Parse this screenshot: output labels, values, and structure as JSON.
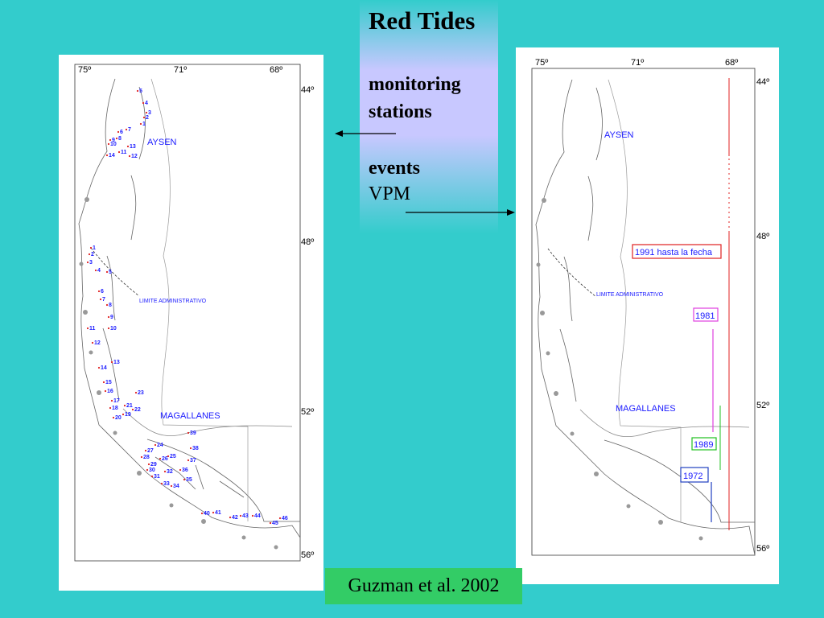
{
  "slide": {
    "title": "Red Tides",
    "label_monitoring": "monitoring",
    "label_stations": "stations",
    "label_events": "events",
    "label_vpm": "VPM",
    "citation": "Guzman et al. 2002"
  },
  "left_map": {
    "longitude_ticks": [
      "75º",
      "71º",
      "68º"
    ],
    "latitude_ticks": [
      "44º",
      "48º",
      "52º",
      "56º"
    ],
    "region_labels": [
      "AYSEN",
      "MAGALLANES"
    ],
    "boundary_label": "LIMITE ADMINISTRATIVO",
    "aysen_station_numbers": [
      "1",
      "2",
      "3",
      "4",
      "5",
      "6",
      "7",
      "8",
      "9",
      "10",
      "11",
      "12",
      "13",
      "14"
    ],
    "magallanes_station_numbers": [
      "1",
      "2",
      "3",
      "4",
      "5",
      "6",
      "7",
      "8",
      "9",
      "10",
      "11",
      "12",
      "13",
      "14",
      "15",
      "16",
      "17",
      "18",
      "19",
      "20",
      "21",
      "22",
      "23",
      "24",
      "25",
      "26",
      "27",
      "28",
      "29",
      "30",
      "31",
      "32",
      "33",
      "34",
      "35",
      "36",
      "37",
      "38",
      "39",
      "40",
      "41",
      "42",
      "43",
      "44",
      "45",
      "46"
    ]
  },
  "right_map": {
    "longitude_ticks": [
      "75º",
      "71º",
      "68º"
    ],
    "latitude_ticks": [
      "44º",
      "48º",
      "52º",
      "56º"
    ],
    "region_labels": [
      "AYSEN",
      "MAGALLANES"
    ],
    "boundary_label": "LIMITE ADMINISTRATIVO",
    "event_periods": [
      {
        "label": "1991 hasta la fecha",
        "color": "#e02020"
      },
      {
        "label": "1981",
        "color": "#e040e0"
      },
      {
        "label": "1989",
        "color": "#20c020"
      },
      {
        "label": "1972",
        "color": "#2040c0"
      }
    ]
  },
  "colors": {
    "background": "#33cccc",
    "station_text": "#1a1aff",
    "citation_bg": "#33cc66"
  }
}
